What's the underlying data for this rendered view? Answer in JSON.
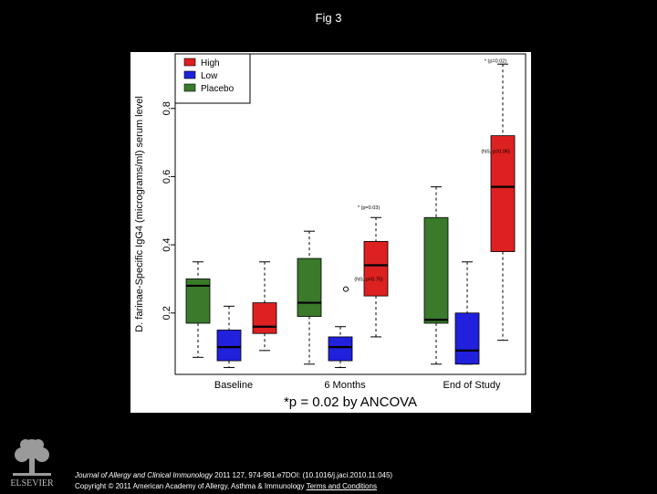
{
  "page": {
    "title": "Fig 3"
  },
  "chart_data": {
    "type": "boxplot",
    "ylabel": "D. farinae-Specific IgG4 (micrograms/ml) serum level",
    "ylim": [
      0.02,
      0.96
    ],
    "yticks": [
      0.2,
      0.4,
      0.6,
      0.8
    ],
    "ytick_labels": [
      "0.2",
      "0.4",
      "0.6",
      "0.8"
    ],
    "categories": [
      "Baseline",
      "6 Months",
      "End of Study"
    ],
    "legend": {
      "placement": "top-left",
      "entries": [
        {
          "label": "High",
          "color": "#dd2020"
        },
        {
          "label": "Low",
          "color": "#2020dd"
        },
        {
          "label": "Placebo",
          "color": "#3a7a2a"
        }
      ]
    },
    "series": [
      {
        "name": "Placebo",
        "color": "#3a7a2a",
        "boxes": [
          {
            "min": 0.07,
            "q1": 0.17,
            "median": 0.28,
            "q3": 0.3,
            "max": 0.35
          },
          {
            "min": 0.05,
            "q1": 0.19,
            "median": 0.23,
            "q3": 0.36,
            "max": 0.44
          },
          {
            "min": 0.05,
            "q1": 0.17,
            "median": 0.18,
            "q3": 0.48,
            "max": 0.57
          }
        ]
      },
      {
        "name": "Low",
        "color": "#2020dd",
        "boxes": [
          {
            "min": 0.04,
            "q1": 0.06,
            "median": 0.1,
            "q3": 0.15,
            "max": 0.22
          },
          {
            "min": 0.04,
            "q1": 0.06,
            "median": 0.1,
            "q3": 0.13,
            "max": 0.16
          },
          {
            "min": 0.05,
            "q1": 0.05,
            "median": 0.09,
            "q3": 0.2,
            "max": 0.35
          }
        ]
      },
      {
        "name": "High",
        "color": "#dd2020",
        "boxes": [
          {
            "min": 0.09,
            "q1": 0.14,
            "median": 0.16,
            "q3": 0.23,
            "max": 0.35
          },
          {
            "min": 0.13,
            "q1": 0.25,
            "median": 0.34,
            "q3": 0.41,
            "max": 0.48
          },
          {
            "min": 0.12,
            "q1": 0.38,
            "median": 0.57,
            "q3": 0.72,
            "max": 0.93
          }
        ]
      }
    ],
    "outliers": [
      {
        "category": "6 Months",
        "series": "Low",
        "value": 0.27
      }
    ],
    "annotations": [
      {
        "text": "* (p=0.02)",
        "category": "End of Study",
        "series": "High",
        "value": 0.935
      },
      {
        "text": "(NS, p=0.06)",
        "category": "End of Study",
        "series": "High",
        "value": 0.67
      },
      {
        "text": "* (p=0.03)",
        "category": "6 Months",
        "series": "High",
        "value": 0.505
      },
      {
        "text": "(NS, p=0.76)",
        "category": "6 Months",
        "series": "High",
        "value": 0.295
      }
    ],
    "caption": "*p = 0.02 by ANCOVA"
  },
  "footer": {
    "journal": "Journal of Allergy and Clinical Immunology",
    "citation": "2011 127, 974-981.e7DOI: (10.1016/j.jaci.2010.11.045)",
    "copyright": "Copyright © 2011 American Academy of Allergy, Asthma & Immunology",
    "link": "Terms and Conditions"
  },
  "logo": {
    "text": "ELSEVIER"
  }
}
